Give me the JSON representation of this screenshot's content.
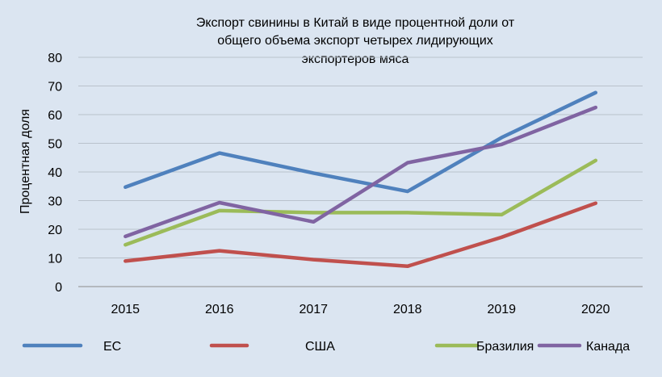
{
  "chart_data": {
    "type": "line",
    "title_lines": [
      "Экспорт свинины в Китай в виде процентной доли от",
      "общего объема экспорт четырех лидирующих",
      "экспортеров мяса"
    ],
    "xlabel": "",
    "ylabel": "Процентная доля",
    "ylim": [
      0,
      80
    ],
    "y_ticks": [
      "0",
      "10",
      "20",
      "30",
      "40",
      "50",
      "60",
      "70",
      "80"
    ],
    "x": [
      "2015",
      "2016",
      "2017",
      "2018",
      "2019",
      "2020"
    ],
    "grid": true,
    "legend_position": "bottom",
    "series": [
      {
        "name": "ЕС",
        "color": "#4f81bd",
        "values": [
          34.7,
          46.6,
          39.6,
          33.2,
          52.0,
          67.7
        ]
      },
      {
        "name": "США",
        "color": "#c0504d",
        "values": [
          8.9,
          12.5,
          9.4,
          7.1,
          17.2,
          29.1
        ]
      },
      {
        "name": "Бразилия",
        "color": "#9bbb59",
        "values": [
          14.6,
          26.5,
          25.8,
          25.8,
          25.1,
          44.0
        ]
      },
      {
        "name": "Канада",
        "color": "#8064a2",
        "values": [
          17.5,
          29.3,
          22.6,
          43.2,
          49.6,
          62.5
        ]
      }
    ]
  }
}
